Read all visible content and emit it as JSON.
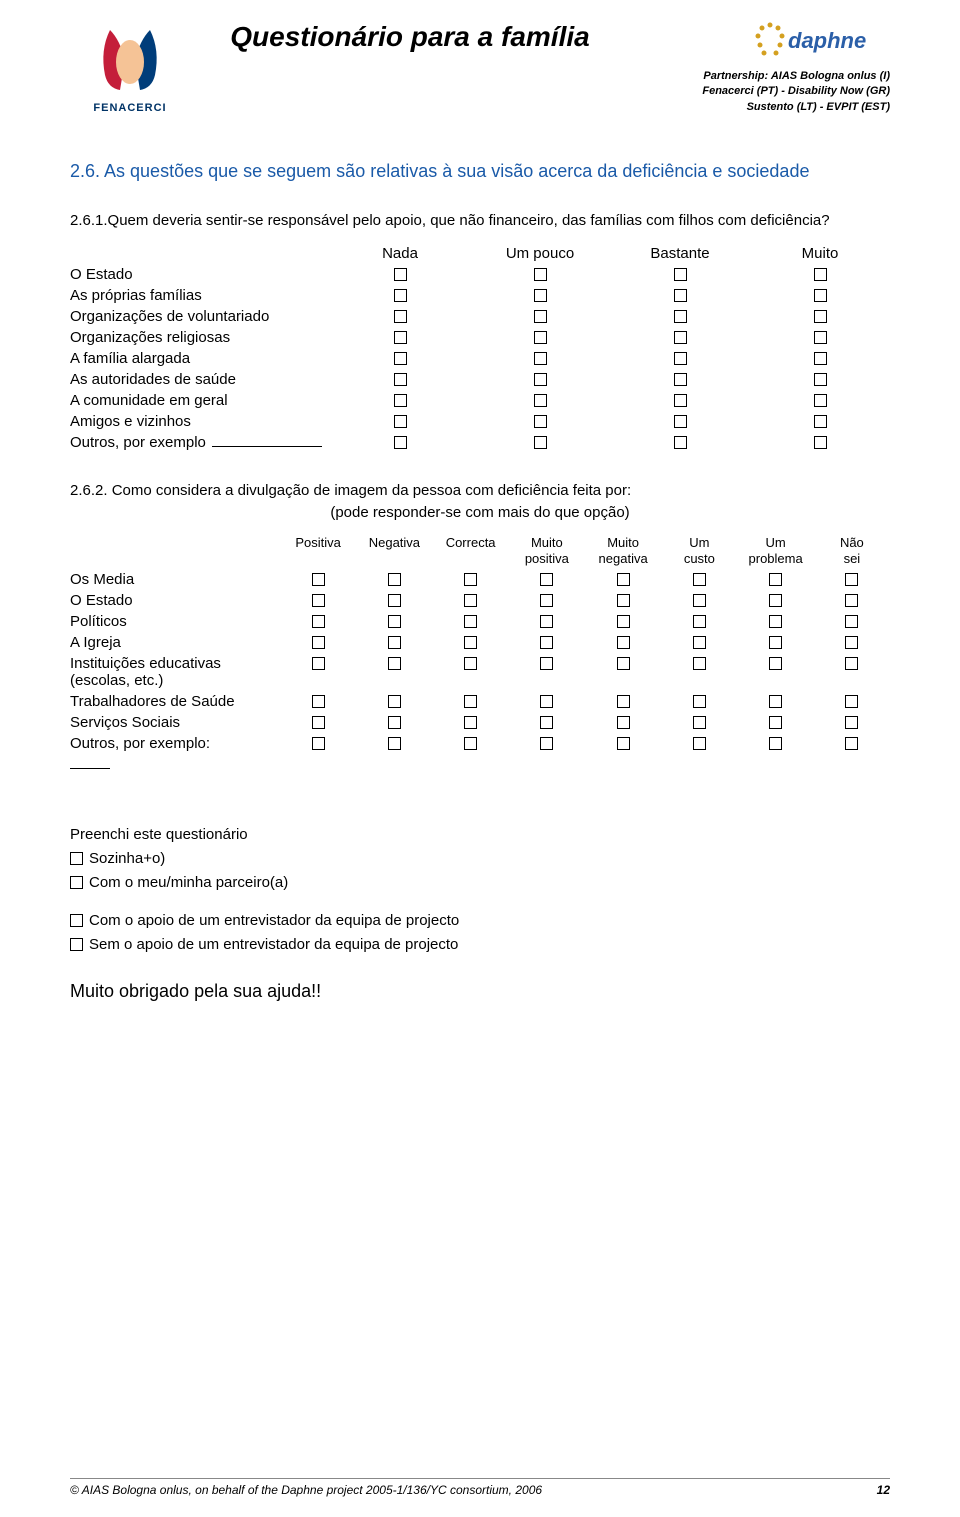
{
  "header": {
    "title": "Questionário para a família",
    "logo_left_text": "FENACERCI",
    "logo_right_text": "daphne",
    "partnership_line1": "Partnership: AIAS Bologna onlus (I)",
    "partnership_line2": "Fenacerci (PT) - Disability Now (GR)",
    "partnership_line3": "Sustento (LT) - EVPIT (EST)"
  },
  "section_heading": "2.6. As questões que se seguem são relativas à sua visão acerca da deficiência e sociedade",
  "q1": {
    "prompt": "2.6.1.Quem deveria sentir-se responsável pelo apoio, que não financeiro, das famílias com filhos com deficiência?",
    "headers": [
      "Nada",
      "Um pouco",
      "Bastante",
      "Muito"
    ],
    "rows": [
      "O Estado",
      "As próprias famílias",
      "Organizações de voluntariado",
      "Organizações religiosas",
      "A família alargada",
      "As autoridades de saúde",
      "A comunidade em geral",
      "Amigos e vizinhos"
    ],
    "other_label": "Outros, por exemplo"
  },
  "q2": {
    "prompt": "2.6.2. Como considera a divulgação de imagem da pessoa com deficiência feita por:",
    "sub": "(pode responder-se com mais do que opção)",
    "headers": [
      "Positiva",
      "Negativa",
      "Correcta",
      "Muito positiva",
      "Muito negativa",
      "Um custo",
      "Um problema",
      "Não sei"
    ],
    "rows": [
      "Os Media",
      "O Estado",
      "Políticos",
      "A Igreja",
      "Instituições educativas (escolas, etc.)",
      "Trabalhadores de Saúde",
      "Serviços Sociais"
    ],
    "other_label": "Outros, por exemplo:"
  },
  "completion": {
    "intro": "Preenchi este questionário",
    "opt1": "Sozinha+o)",
    "opt2": "Com o meu/minha parceiro(a)",
    "opt3": "Com o apoio de um entrevistador da equipa de projecto",
    "opt4": "Sem o apoio de um entrevistador da equipa de projecto"
  },
  "thanks": "Muito obrigado pela sua ajuda!!",
  "footer": {
    "text": "© AIAS Bologna onlus, on behalf of the Daphne project 2005-1/136/YC consortium, 2006",
    "page": "12"
  },
  "colors": {
    "heading": "#1a5aa8",
    "text": "#000000",
    "logo_blue": "#003d7a",
    "logo_red": "#c41e3a",
    "logo_peach": "#f5c396",
    "daphne_blue": "#2b5fa8",
    "daphne_gold": "#d4a020"
  }
}
